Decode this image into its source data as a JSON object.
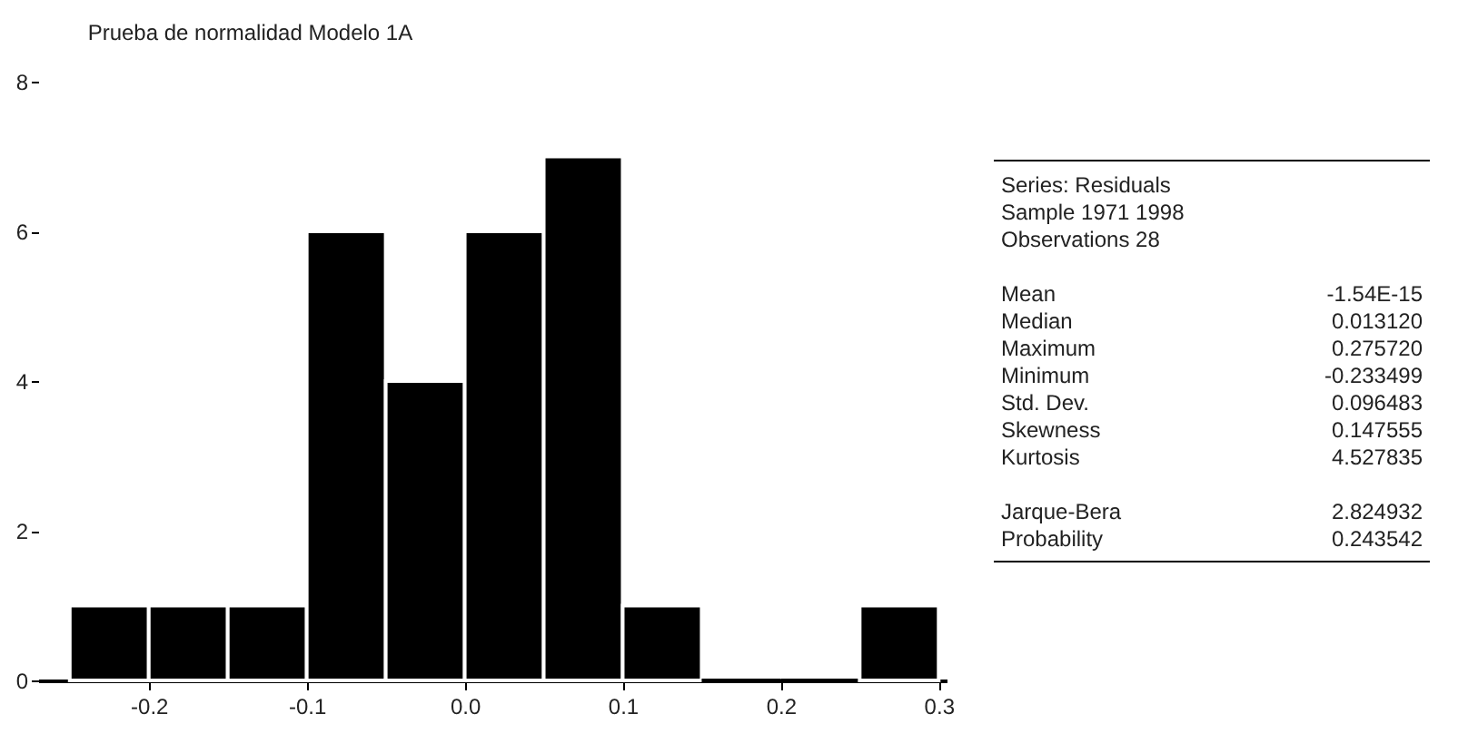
{
  "chart_data": {
    "type": "histogram",
    "title": "Prueba de normalidad Modelo 1A",
    "bins": [
      -0.25,
      -0.2,
      -0.15,
      -0.1,
      -0.05,
      0,
      0.05,
      0.1,
      0.15,
      0.2,
      0.25,
      0.3
    ],
    "values": [
      1,
      1,
      1,
      6,
      4,
      6,
      7,
      1,
      0,
      0,
      1
    ],
    "color": "#000000",
    "xlim": [
      -0.27,
      0.305
    ],
    "xticks": [
      -0.2,
      -0.1,
      {
        "value": 0,
        "label": "0.0"
      },
      0.1,
      0.2,
      0.3
    ],
    "ylim": [
      0,
      8
    ],
    "yticks": [
      0,
      2,
      4,
      6,
      8
    ],
    "grid": false,
    "annotations": [
      "Series: Residuals",
      "Sample 1971 1998",
      "Observations 28",
      "Mean -1.54E-15",
      "Median 0.013120",
      "Maximum 0.275720",
      "Minimum -0.233499",
      "Std. Dev. 0.096483",
      "Skewness 0.147555",
      "Kurtosis 4.527835",
      "Jarque-Bera 2.824932",
      "Probability 0.243542"
    ]
  }
}
